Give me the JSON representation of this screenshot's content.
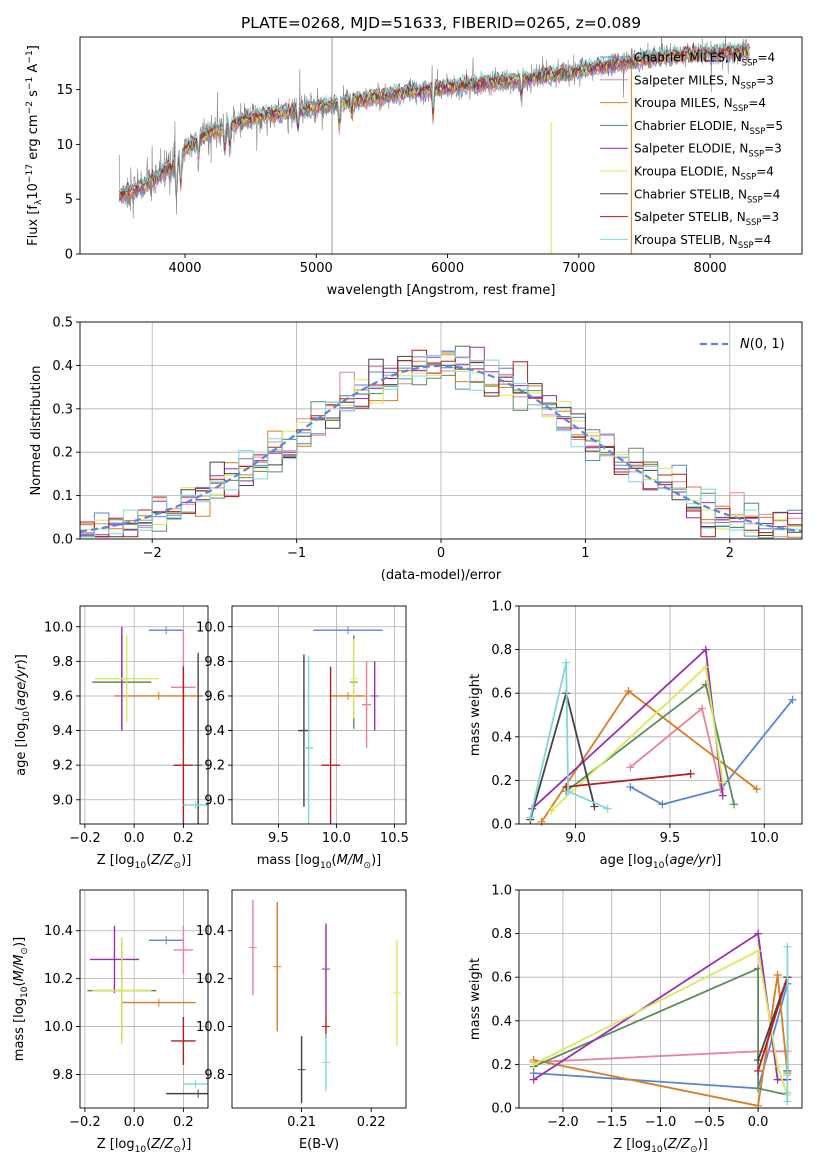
{
  "chart_data": [
    {
      "id": "spectrum",
      "type": "line",
      "title": "PLATE=0268, MJD=51633, FIBERID=0265, z=0.089",
      "xlabel": "wavelength [Angstrom, rest frame]",
      "ylabel": "Flux [f_λ10^-17 erg cm^-2 s^-1 A^-1]",
      "xlim": [
        3200,
        8700
      ],
      "ylim": [
        0,
        19.8
      ],
      "xticks": [
        4000,
        5000,
        6000,
        7000,
        8000
      ],
      "yticks": [
        0,
        5,
        10,
        15
      ],
      "grid": false,
      "legend_position": "top-right",
      "continuum": {
        "x": [
          3500,
          3700,
          3900,
          4000,
          4200,
          4500,
          4800,
          5100,
          5400,
          5700,
          6000,
          6300,
          6600,
          6900,
          7200,
          7500,
          7800,
          8100,
          8300
        ],
        "y": [
          5.3,
          6.3,
          8.0,
          9.6,
          11.2,
          12.4,
          13.0,
          13.6,
          14.2,
          14.8,
          15.2,
          15.6,
          16.0,
          16.5,
          17.2,
          17.8,
          18.2,
          18.4,
          18.5
        ]
      },
      "series": [
        {
          "name": "Chabrier MILES, N_SSP=4",
          "color": "#5b86d6"
        },
        {
          "name": "Salpeter MILES, N_SSP=3",
          "color": "#e9829a"
        },
        {
          "name": "Kroupa MILES, N_SSP=4",
          "color": "#d97c22"
        },
        {
          "name": "Chabrier ELODIE, N_SSP=5",
          "color": "#5e8c5e"
        },
        {
          "name": "Salpeter ELODIE, N_SSP=3",
          "color": "#9a2fb0"
        },
        {
          "name": "Kroupa ELODIE, N_SSP=4",
          "color": "#d8ea5a"
        },
        {
          "name": "Chabrier STELIB, N_SSP=4",
          "color": "#444444"
        },
        {
          "name": "Salpeter STELIB, N_SSP=3",
          "color": "#b01f1f"
        },
        {
          "name": "Kroupa STELIB, N_SSP=4",
          "color": "#7fd6dc"
        }
      ]
    },
    {
      "id": "residuals",
      "type": "step-histogram",
      "xlabel": "(data-model)/error",
      "ylabel": "Normed distribution",
      "xlim": [
        -2.5,
        2.5
      ],
      "ylim": [
        0,
        0.5
      ],
      "xticks": [
        -2,
        -1,
        0,
        1,
        2
      ],
      "yticks": [
        0.0,
        0.1,
        0.2,
        0.3,
        0.4,
        0.5
      ],
      "grid": true,
      "reference_curve": {
        "label": "N(0,1)",
        "color": "#5b86d6",
        "style": "dashed"
      },
      "legend_position": "top-right"
    },
    {
      "id": "age_vs_Z",
      "type": "errorbar",
      "xlabel": "Z [log10(Z/Z⊙)]",
      "ylabel": "age [log10(age/yr)]",
      "xlim": [
        -0.22,
        0.3
      ],
      "ylim": [
        8.86,
        10.12
      ],
      "xticks": [
        -0.2,
        0.0,
        0.2
      ],
      "yticks": [
        9.0,
        9.2,
        9.4,
        9.6,
        9.8,
        10.0
      ],
      "grid": true,
      "points": [
        {
          "series": 0,
          "x": 0.13,
          "xerr": 0.07,
          "y": 9.98,
          "yerr": 0.0
        },
        {
          "series": 1,
          "x": 0.2,
          "xerr": 0.05,
          "y": 9.65,
          "yerr": 0.33
        },
        {
          "series": 2,
          "x": 0.1,
          "xerr": 0.18,
          "y": 9.6,
          "yerr": 0.0
        },
        {
          "series": 3,
          "x": -0.05,
          "xerr": 0.12,
          "y": 9.68,
          "yerr": 0.27
        },
        {
          "series": 4,
          "x": -0.05,
          "xerr": 0.0,
          "y": 9.7,
          "yerr": 0.3
        },
        {
          "series": 5,
          "x": -0.03,
          "xerr": 0.13,
          "y": 9.7,
          "yerr": 0.25
        },
        {
          "series": 6,
          "x": 0.26,
          "xerr": 0.0,
          "y": 9.2,
          "yerr": 0.65
        },
        {
          "series": 7,
          "x": 0.2,
          "xerr": 0.04,
          "y": 9.2,
          "yerr": 0.57
        },
        {
          "series": 8,
          "x": 0.25,
          "xerr": 0.05,
          "y": 8.97,
          "yerr": 0.0
        }
      ]
    },
    {
      "id": "age_vs_mass",
      "type": "errorbar",
      "xlabel": "mass [log10(M/M⊙)]",
      "ylabel": "",
      "xlim": [
        9.1,
        10.6
      ],
      "ylim": [
        8.86,
        10.12
      ],
      "xticks": [
        9.5,
        10.0,
        10.5
      ],
      "yticks": [
        9.0,
        9.2,
        9.4,
        9.6,
        9.8,
        10.0
      ],
      "grid": true,
      "points": [
        {
          "series": 0,
          "x": 10.1,
          "xerr": 0.3,
          "y": 9.98,
          "yerr": 0.0
        },
        {
          "series": 1,
          "x": 10.26,
          "xerr": 0.04,
          "y": 9.55,
          "yerr": 0.25
        },
        {
          "series": 2,
          "x": 10.1,
          "xerr": 0.15,
          "y": 9.6,
          "yerr": 0.0
        },
        {
          "series": 3,
          "x": 10.15,
          "xerr": 0.0,
          "y": 9.68,
          "yerr": 0.27
        },
        {
          "series": 4,
          "x": 10.33,
          "xerr": 0.0,
          "y": 9.6,
          "yerr": 0.2
        },
        {
          "series": 5,
          "x": 10.15,
          "xerr": 0.0,
          "y": 9.7,
          "yerr": 0.23
        },
        {
          "series": 6,
          "x": 9.72,
          "xerr": 0.05,
          "y": 9.4,
          "yerr": 0.44
        },
        {
          "series": 7,
          "x": 9.95,
          "xerr": 0.08,
          "y": 9.2,
          "yerr": 0.57
        },
        {
          "series": 8,
          "x": 9.76,
          "xerr": 0.04,
          "y": 9.3,
          "yerr": 0.53
        }
      ]
    },
    {
      "id": "weight_vs_age",
      "type": "line",
      "xlabel": "age [log10(age/yr)]",
      "ylabel": "mass weight",
      "xlim": [
        8.7,
        10.2
      ],
      "ylim": [
        0.0,
        1.0
      ],
      "xticks": [
        9.0,
        9.5,
        10.0
      ],
      "yticks": [
        0.0,
        0.2,
        0.4,
        0.6,
        0.8,
        1.0
      ],
      "grid": true,
      "lines": [
        {
          "series": 0,
          "x": [
            9.29,
            9.46,
            9.77,
            10.15
          ],
          "y": [
            0.17,
            0.09,
            0.16,
            0.57
          ]
        },
        {
          "series": 1,
          "x": [
            9.29,
            9.67,
            9.77
          ],
          "y": [
            0.26,
            0.53,
            0.16
          ]
        },
        {
          "series": 2,
          "x": [
            8.82,
            9.28,
            9.96
          ],
          "y": [
            0.01,
            0.61,
            0.16
          ]
        },
        {
          "series": 3,
          "x": [
            8.95,
            9.69,
            9.84
          ],
          "y": [
            0.15,
            0.64,
            0.09
          ]
        },
        {
          "series": 4,
          "x": [
            8.77,
            9.69,
            9.78
          ],
          "y": [
            0.07,
            0.8,
            0.13
          ]
        },
        {
          "series": 5,
          "x": [
            8.87,
            9.69,
            9.78
          ],
          "y": [
            0.06,
            0.72,
            0.19
          ]
        },
        {
          "series": 6,
          "x": [
            8.76,
            8.95,
            9.1
          ],
          "y": [
            0.02,
            0.6,
            0.08
          ]
        },
        {
          "series": 7,
          "x": [
            8.95,
            9.61
          ],
          "y": [
            0.17,
            0.23
          ]
        },
        {
          "series": 8,
          "x": [
            8.76,
            8.95,
            8.96,
            9.17
          ],
          "y": [
            0.03,
            0.74,
            0.15,
            0.07
          ]
        }
      ]
    },
    {
      "id": "mass_vs_Z",
      "type": "errorbar",
      "xlabel": "Z [log10(Z/Z⊙)]",
      "ylabel": "mass [log10(M/M⊙)]",
      "xlim": [
        -0.22,
        0.3
      ],
      "ylim": [
        9.66,
        10.57
      ],
      "xticks": [
        -0.2,
        0.0,
        0.2
      ],
      "yticks": [
        9.8,
        10.0,
        10.2,
        10.4
      ],
      "grid": true,
      "points": [
        {
          "series": 0,
          "x": 0.13,
          "xerr": 0.07,
          "y": 10.36,
          "yerr": 0.0
        },
        {
          "series": 1,
          "x": 0.2,
          "xerr": 0.04,
          "y": 10.32,
          "yerr": 0.1
        },
        {
          "series": 2,
          "x": 0.1,
          "xerr": 0.15,
          "y": 10.1,
          "yerr": 0.0
        },
        {
          "series": 3,
          "x": -0.05,
          "xerr": 0.14,
          "y": 10.15,
          "yerr": 0.22
        },
        {
          "series": 4,
          "x": -0.08,
          "xerr": 0.1,
          "y": 10.28,
          "yerr": 0.14
        },
        {
          "series": 5,
          "x": -0.05,
          "xerr": 0.12,
          "y": 10.15,
          "yerr": 0.22
        },
        {
          "series": 6,
          "x": 0.26,
          "xerr": 0.13,
          "y": 9.72,
          "yerr": 0.0
        },
        {
          "series": 7,
          "x": 0.2,
          "xerr": 0.05,
          "y": 9.94,
          "yerr": 0.1
        },
        {
          "series": 8,
          "x": 0.25,
          "xerr": 0.05,
          "y": 9.76,
          "yerr": 0.0
        }
      ]
    },
    {
      "id": "mass_vs_ebv",
      "type": "errorbar",
      "xlabel": "E(B-V)",
      "ylabel": "",
      "xlim": [
        0.2,
        0.225
      ],
      "ylim": [
        9.66,
        10.57
      ],
      "xticks": [
        0.21,
        0.22
      ],
      "yticks": [
        9.8,
        10.0,
        10.2,
        10.4
      ],
      "grid": false,
      "points": [
        {
          "series": 1,
          "x": 0.203,
          "xerr": 0.0,
          "y": 10.33,
          "yerr": 0.2
        },
        {
          "series": 2,
          "x": 0.2065,
          "xerr": 0.0,
          "y": 10.25,
          "yerr": 0.27
        },
        {
          "series": 6,
          "x": 0.21,
          "xerr": 0.0,
          "y": 9.82,
          "yerr": 0.14
        },
        {
          "series": 4,
          "x": 0.2135,
          "xerr": 0.0,
          "y": 10.24,
          "yerr": 0.19
        },
        {
          "series": 7,
          "x": 0.2135,
          "xerr": 0.0,
          "y": 10.0,
          "yerr": 0.05
        },
        {
          "series": 8,
          "x": 0.2135,
          "xerr": 0.0,
          "y": 9.85,
          "yerr": 0.12
        },
        {
          "series": 5,
          "x": 0.2237,
          "xerr": 0.0,
          "y": 10.14,
          "yerr": 0.22
        }
      ]
    },
    {
      "id": "weight_vs_Z",
      "type": "line",
      "xlabel": "Z [log10(Z/Z⊙)]",
      "ylabel": "mass weight",
      "xlim": [
        -2.45,
        0.45
      ],
      "ylim": [
        0.0,
        1.0
      ],
      "xticks": [
        -2.0,
        -1.5,
        -1.0,
        -0.5,
        0.0
      ],
      "yticks": [
        0.0,
        0.2,
        0.4,
        0.6,
        0.8,
        1.0
      ],
      "grid": true,
      "lines": [
        {
          "series": 0,
          "x": [
            -2.3,
            0.0,
            0.3
          ],
          "y": [
            0.16,
            0.09,
            0.57
          ]
        },
        {
          "series": 1,
          "x": [
            -2.3,
            0.0,
            0.3
          ],
          "y": [
            0.21,
            0.26,
            0.26
          ]
        },
        {
          "series": 2,
          "x": [
            -2.3,
            0.0,
            0.2,
            0.3
          ],
          "y": [
            0.22,
            0.01,
            0.61,
            0.16
          ]
        },
        {
          "series": 3,
          "x": [
            -2.3,
            0.0,
            0.0,
            0.3
          ],
          "y": [
            0.19,
            0.64,
            0.09,
            0.06
          ]
        },
        {
          "series": 4,
          "x": [
            -2.3,
            0.0,
            0.2,
            0.3
          ],
          "y": [
            0.13,
            0.8,
            0.13,
            0.13
          ]
        },
        {
          "series": 5,
          "x": [
            -2.3,
            0.0,
            0.2,
            0.3
          ],
          "y": [
            0.2,
            0.72,
            0.19,
            0.06
          ]
        },
        {
          "series": 6,
          "x": [
            0.0,
            0.3,
            0.3
          ],
          "y": [
            0.22,
            0.6,
            0.17
          ]
        },
        {
          "series": 7,
          "x": [
            0.0,
            0.3
          ],
          "y": [
            0.17,
            0.6
          ]
        },
        {
          "series": 8,
          "x": [
            0.3,
            0.3,
            0.3,
            0.3
          ],
          "y": [
            0.03,
            0.74,
            0.15,
            0.07
          ]
        }
      ]
    }
  ]
}
